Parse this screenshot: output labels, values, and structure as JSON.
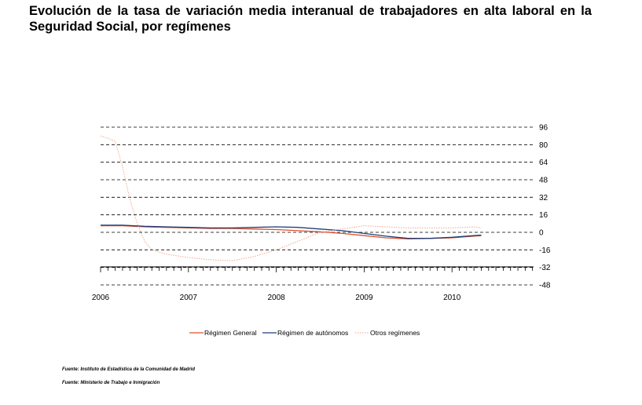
{
  "chart_data": {
    "type": "line",
    "title": "Evolución de la tasa de variación media interanual de trabajadores en alta laboral en la Seguridad Social, por  regímenes",
    "x_ticks": [
      "2006",
      "2007",
      "2008",
      "2009",
      "2010"
    ],
    "x_range": [
      "2006-01",
      "2010-12"
    ],
    "y_ticks": [
      "96",
      "80",
      "64",
      "48",
      "32",
      "16",
      "0",
      "-16",
      "-32",
      "-48"
    ],
    "ylim": [
      -48,
      96
    ],
    "grid": true,
    "y_axis_position": "right",
    "legend_position": "bottom",
    "series": [
      {
        "name": "Régimen General",
        "color": "#e0502a",
        "style": "solid",
        "points": [
          [
            "2006-01",
            6
          ],
          [
            "2006-04",
            6
          ],
          [
            "2006-07",
            5
          ],
          [
            "2006-10",
            4.5
          ],
          [
            "2007-01",
            4
          ],
          [
            "2007-04",
            3.5
          ],
          [
            "2007-07",
            3.5
          ],
          [
            "2007-10",
            3
          ],
          [
            "2008-01",
            2.5
          ],
          [
            "2008-04",
            1.5
          ],
          [
            "2008-07",
            0.5
          ],
          [
            "2008-10",
            -1
          ],
          [
            "2009-01",
            -3
          ],
          [
            "2009-04",
            -5
          ],
          [
            "2009-07",
            -6
          ],
          [
            "2009-10",
            -5.5
          ],
          [
            "2010-01",
            -5
          ],
          [
            "2010-04",
            -3.5
          ],
          [
            "2010-05",
            -3
          ]
        ]
      },
      {
        "name": "Régimen de autónomos",
        "color": "#1f3f7a",
        "style": "solid",
        "points": [
          [
            "2006-01",
            6.5
          ],
          [
            "2006-04",
            6.5
          ],
          [
            "2006-07",
            5.5
          ],
          [
            "2006-10",
            5
          ],
          [
            "2007-01",
            4.5
          ],
          [
            "2007-04",
            4
          ],
          [
            "2007-07",
            4
          ],
          [
            "2007-10",
            4.5
          ],
          [
            "2008-01",
            5
          ],
          [
            "2008-04",
            4.5
          ],
          [
            "2008-07",
            3
          ],
          [
            "2008-10",
            1.5
          ],
          [
            "2009-01",
            -1
          ],
          [
            "2009-04",
            -3.5
          ],
          [
            "2009-07",
            -5.5
          ],
          [
            "2009-10",
            -5.5
          ],
          [
            "2010-01",
            -4.5
          ],
          [
            "2010-04",
            -3
          ],
          [
            "2010-05",
            -2.5
          ]
        ]
      },
      {
        "name": "Otros regímenes",
        "color": "#f2a68a",
        "style": "dotted",
        "points": [
          [
            "2006-01",
            88
          ],
          [
            "2006-02",
            86
          ],
          [
            "2006-03",
            83
          ],
          [
            "2006-04",
            60
          ],
          [
            "2006-05",
            30
          ],
          [
            "2006-06",
            8
          ],
          [
            "2006-07",
            -8
          ],
          [
            "2006-08",
            -16
          ],
          [
            "2006-10",
            -20
          ],
          [
            "2007-01",
            -23
          ],
          [
            "2007-04",
            -25
          ],
          [
            "2007-07",
            -26
          ],
          [
            "2007-10",
            -22
          ],
          [
            "2008-01",
            -16
          ],
          [
            "2008-04",
            -8
          ],
          [
            "2008-07",
            0
          ],
          [
            "2008-10",
            3
          ],
          [
            "2009-01",
            6
          ],
          [
            "2009-04",
            5
          ],
          [
            "2009-07",
            4
          ],
          [
            "2009-10",
            4
          ],
          [
            "2010-01",
            4
          ],
          [
            "2010-04",
            5
          ],
          [
            "2010-05",
            4
          ]
        ]
      }
    ]
  },
  "sources": [
    "Fuente: Instituto de Estadística de la Comunidad de Madrid",
    "Fuente: Ministerio de Trabajo e Inmigración"
  ]
}
